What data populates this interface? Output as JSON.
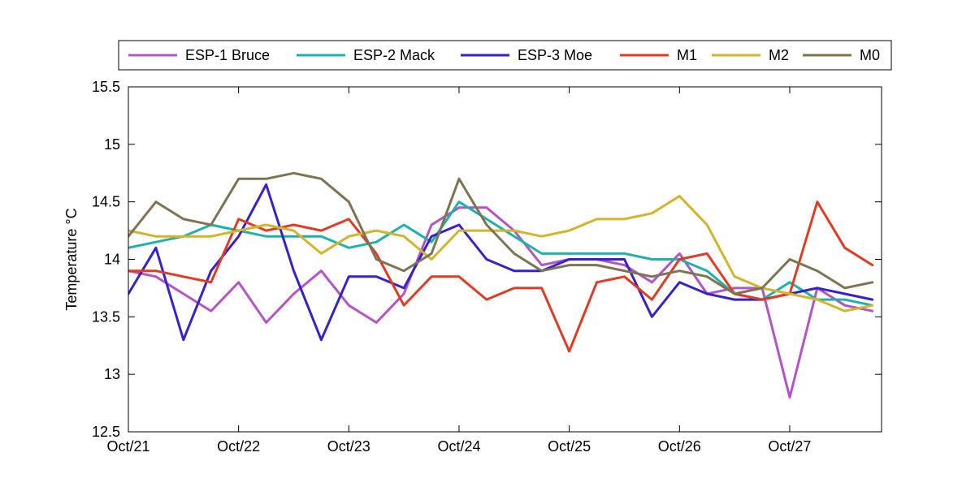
{
  "chart_data": {
    "type": "line",
    "title": "",
    "xlabel": "",
    "ylabel": "Temperature °C",
    "ylim": [
      12.5,
      15.5
    ],
    "xlim": [
      "2008-10-21T00:00",
      "2008-10-27T20:00"
    ],
    "x_ticks": [
      "Oct/21",
      "Oct/22",
      "Oct/23",
      "Oct/24",
      "Oct/25",
      "Oct/26",
      "Oct/27"
    ],
    "y_ticks": [
      "12.5",
      "13",
      "13.5",
      "14",
      "14.5",
      "15",
      "15.5"
    ],
    "grid": false,
    "legend_position": "top",
    "x_time": [
      "2008-10-21T00:00",
      "2008-10-21T06:00",
      "2008-10-21T12:00",
      "2008-10-21T18:00",
      "2008-10-22T00:00",
      "2008-10-22T06:00",
      "2008-10-22T12:00",
      "2008-10-22T18:00",
      "2008-10-23T00:00",
      "2008-10-23T06:00",
      "2008-10-23T12:00",
      "2008-10-23T18:00",
      "2008-10-24T00:00",
      "2008-10-24T06:00",
      "2008-10-24T12:00",
      "2008-10-24T18:00",
      "2008-10-25T00:00",
      "2008-10-25T06:00",
      "2008-10-25T12:00",
      "2008-10-25T18:00",
      "2008-10-26T00:00",
      "2008-10-26T06:00",
      "2008-10-26T12:00",
      "2008-10-26T18:00",
      "2008-10-27T00:00",
      "2008-10-27T06:00",
      "2008-10-27T12:00",
      "2008-10-27T18:00"
    ],
    "series": [
      {
        "name": "ESP-1 Bruce",
        "color": "#b554c5",
        "values": [
          13.9,
          13.85,
          13.7,
          13.55,
          13.8,
          13.45,
          13.7,
          13.9,
          13.6,
          13.45,
          13.7,
          14.3,
          14.45,
          14.45,
          14.25,
          13.95,
          14.0,
          14.0,
          13.95,
          13.8,
          14.05,
          13.7,
          13.75,
          13.75,
          12.8,
          13.75,
          13.6,
          13.55
        ]
      },
      {
        "name": "ESP-2 Mack",
        "color": "#20b2aa",
        "values": [
          14.1,
          14.15,
          14.2,
          14.3,
          14.25,
          14.2,
          14.2,
          14.2,
          14.1,
          14.15,
          14.3,
          14.15,
          14.5,
          14.35,
          14.2,
          14.05,
          14.05,
          14.05,
          14.05,
          14.0,
          14.0,
          13.9,
          13.7,
          13.65,
          13.8,
          13.65,
          13.65,
          13.6
        ]
      },
      {
        "name": "ESP-3 Moe",
        "color": "#3522c8",
        "values": [
          13.7,
          14.1,
          13.3,
          13.9,
          14.2,
          14.65,
          13.9,
          13.3,
          13.85,
          13.85,
          13.75,
          14.2,
          14.3,
          14.0,
          13.9,
          13.9,
          14.0,
          14.0,
          14.0,
          13.5,
          13.8,
          13.7,
          13.65,
          13.65,
          13.7,
          13.75,
          13.7,
          13.65
        ]
      },
      {
        "name": "M1",
        "color": "#e03c23",
        "values": [
          13.9,
          13.9,
          13.85,
          13.8,
          14.35,
          14.25,
          14.3,
          14.25,
          14.35,
          14.05,
          13.6,
          13.85,
          13.85,
          13.65,
          13.75,
          13.75,
          13.2,
          13.8,
          13.85,
          13.65,
          14.0,
          14.05,
          13.7,
          13.65,
          13.7,
          14.5,
          14.1,
          13.95
        ]
      },
      {
        "name": "M2",
        "color": "#d2b42d",
        "values": [
          14.25,
          14.2,
          14.2,
          14.2,
          14.25,
          14.3,
          14.25,
          14.05,
          14.2,
          14.25,
          14.2,
          14.0,
          14.25,
          14.25,
          14.25,
          14.2,
          14.25,
          14.35,
          14.35,
          14.4,
          14.55,
          14.3,
          13.85,
          13.75,
          13.7,
          13.65,
          13.55,
          13.6
        ]
      },
      {
        "name": "M0",
        "color": "#7d7452",
        "values": [
          14.2,
          14.5,
          14.35,
          14.3,
          14.7,
          14.7,
          14.75,
          14.7,
          14.5,
          14.0,
          13.9,
          14.05,
          14.7,
          14.3,
          14.05,
          13.9,
          13.95,
          13.95,
          13.9,
          13.85,
          13.9,
          13.85,
          13.7,
          13.75,
          14.0,
          13.9,
          13.75,
          13.8
        ]
      }
    ]
  }
}
